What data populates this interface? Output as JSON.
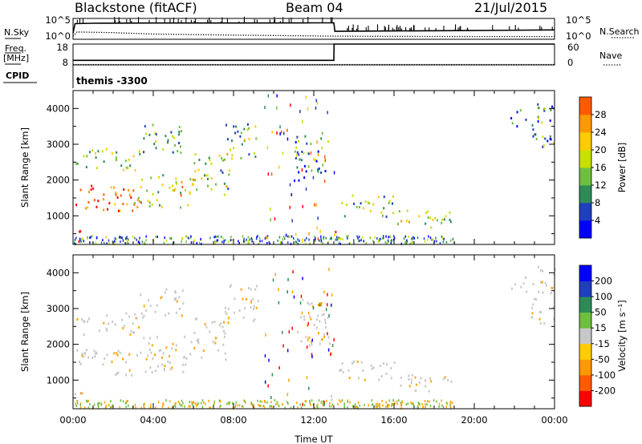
{
  "header": {
    "radar": "Blackstone (fitACF)",
    "beam": "Beam 04",
    "date": "21/Jul/2015"
  },
  "side_labels": {
    "nsky": "N.Sky",
    "freq": "Freq.",
    "mhz": "[MHz]",
    "cpid": "CPID",
    "nsearch": "N.Search",
    "nave": "Nave",
    "cpid_value": "themis -3300"
  },
  "chart_data": [
    {
      "type": "line",
      "name": "noise",
      "left_axis": {
        "label": "N.Sky",
        "ticks": [
          "10^5",
          "10^0"
        ]
      },
      "right_axis": {
        "label": "N.Search",
        "ticks": [
          "10^5",
          "10^0"
        ]
      },
      "x_range_hours": [
        0,
        24
      ],
      "series": [
        {
          "style": "solid",
          "x": [
            0,
            0.1,
            1,
            4,
            8,
            12,
            13,
            13.05,
            16,
            20,
            24
          ],
          "level": [
            0.3,
            0.75,
            0.77,
            0.78,
            0.78,
            0.79,
            0.79,
            0.38,
            0.4,
            0.42,
            0.45
          ]
        },
        {
          "style": "dotted",
          "x": [
            0,
            0.2,
            2,
            4,
            8,
            13,
            16,
            20,
            24
          ],
          "level": [
            0.15,
            0.35,
            0.32,
            0.25,
            0.2,
            0.15,
            0.14,
            0.13,
            0.13
          ]
        }
      ]
    },
    {
      "type": "line",
      "name": "frequency-nave",
      "left_axis": {
        "label": "Freq. [MHz]",
        "ticks": [
          "18",
          "8"
        ],
        "range": [
          8,
          18
        ]
      },
      "right_axis": {
        "label": "Nave",
        "ticks": [
          "60",
          "0"
        ],
        "range": [
          0,
          60
        ]
      },
      "series": [
        {
          "style": "solid",
          "x": [
            0,
            13,
            13.01,
            24
          ],
          "y": [
            10.2,
            10.2,
            18,
            18
          ]
        },
        {
          "style": "dotted",
          "x": [
            0,
            24
          ],
          "y": [
            8.2,
            8.2
          ]
        }
      ]
    },
    {
      "type": "heatmap",
      "name": "power",
      "ylabel": "Slant Range [km]",
      "yticks": [
        1000,
        2000,
        3000,
        4000
      ],
      "ylim": [
        200,
        4500
      ],
      "xlim_hours": [
        0,
        24
      ],
      "colorbar": {
        "label": "Power [dB]",
        "ticks": [
          4,
          8,
          12,
          16,
          20,
          24,
          28
        ],
        "range": [
          0,
          30
        ]
      },
      "bands": [
        {
          "t0": 0,
          "t1": 3,
          "r0": 1150,
          "r1": 1900,
          "s": 0.82
        },
        {
          "t0": 3,
          "t1": 6,
          "r0": 1250,
          "r1": 2250,
          "s": 0.55
        },
        {
          "t0": 6,
          "t1": 7.8,
          "r0": 1600,
          "r1": 2800,
          "s": 0.45
        },
        {
          "t0": 0.1,
          "t1": 3.3,
          "r0": 2300,
          "r1": 2900,
          "s": 0.4
        },
        {
          "t0": 3.3,
          "t1": 5.5,
          "r0": 2750,
          "r1": 3600,
          "s": 0.3
        },
        {
          "t0": 7.5,
          "t1": 9.2,
          "r0": 2600,
          "r1": 3700,
          "s": 0.4
        },
        {
          "t0": 0,
          "t1": 0.5,
          "r0": 300,
          "r1": 700,
          "s": 0.9
        },
        {
          "t0": 11,
          "t1": 12.8,
          "r0": 2000,
          "r1": 3400,
          "s": 0.25
        },
        {
          "t0": 13.2,
          "t1": 16,
          "r0": 1000,
          "r1": 1600,
          "s": 0.4
        },
        {
          "t0": 16,
          "t1": 19,
          "r0": 700,
          "r1": 1200,
          "s": 0.5
        },
        {
          "t0": 12.8,
          "t1": 13.1,
          "r0": 400,
          "r1": 800,
          "s": 0.85
        },
        {
          "t0": 21.8,
          "t1": 22.6,
          "r0": 3500,
          "r1": 4000,
          "s": 0.25
        },
        {
          "t0": 22.8,
          "t1": 24,
          "r0": 2600,
          "r1": 4200,
          "s": 0.3
        }
      ]
    },
    {
      "type": "heatmap",
      "name": "velocity",
      "ylabel": "Slant Range [km]",
      "yticks": [
        1000,
        2000,
        3000,
        4000
      ],
      "ylim": [
        200,
        4500
      ],
      "xlim_hours": [
        0,
        24
      ],
      "xlabel": "Time UT",
      "xticks": [
        "00:00",
        "04:00",
        "08:00",
        "12:00",
        "16:00",
        "20:00",
        "00:00"
      ],
      "colorbar": {
        "label": "Velocity [m s⁻¹]",
        "ticks": [
          200,
          100,
          50,
          15,
          -15,
          -50,
          -100,
          -200
        ],
        "range": [
          -250,
          250
        ]
      },
      "colors": {
        "ground": "#c8c8c8",
        "neg": "#ffa500",
        "pos": "#2e8b57"
      }
    }
  ]
}
